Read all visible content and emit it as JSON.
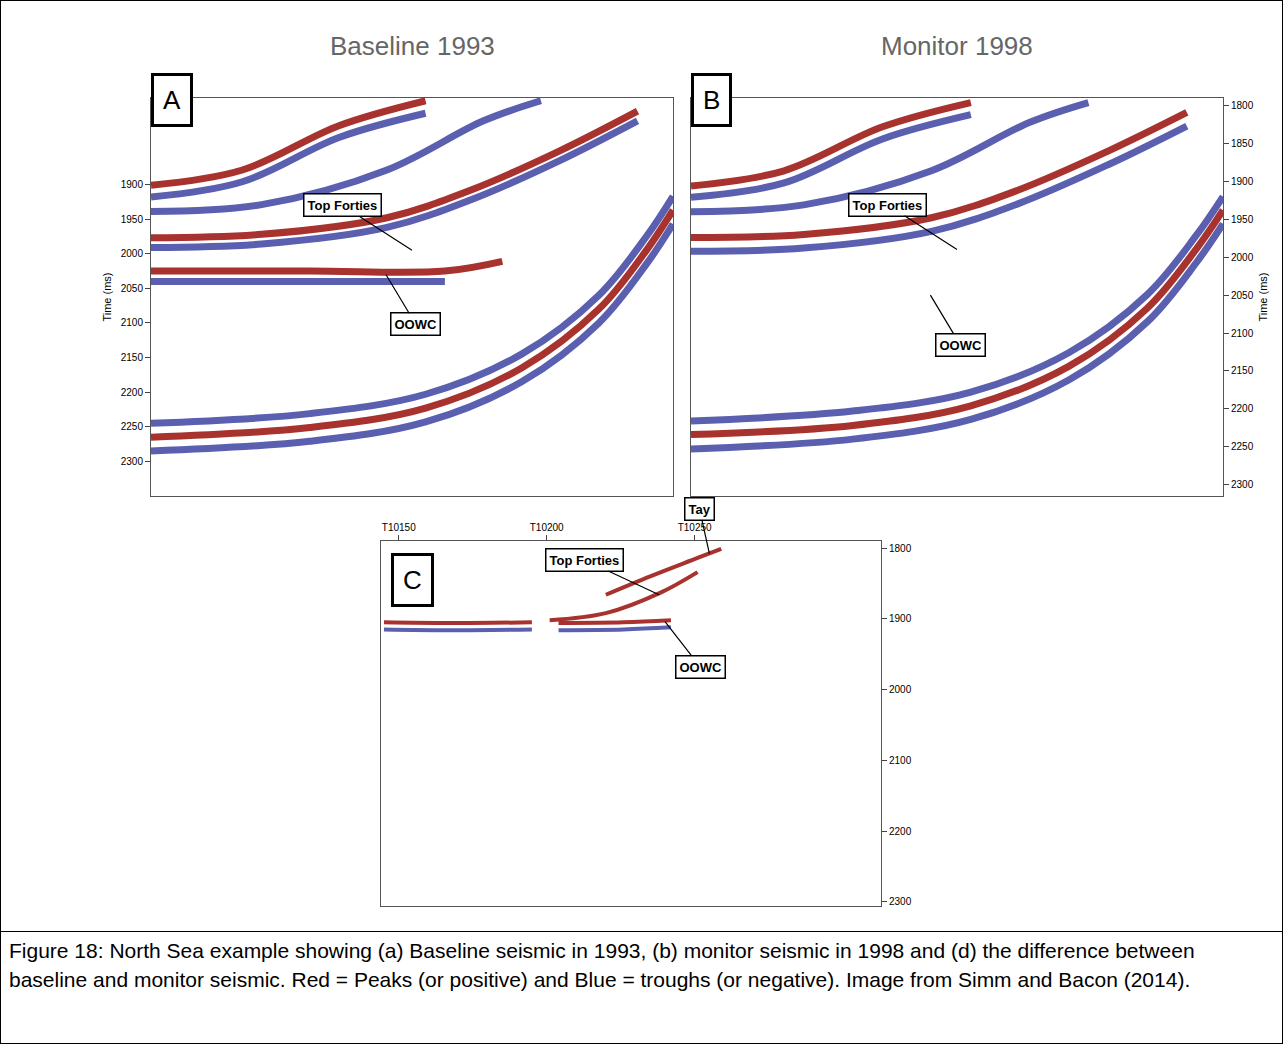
{
  "chart_data": [
    {
      "type": "line",
      "title": "Baseline 1993",
      "label": "A",
      "y_label": "Time (ms)",
      "xlim": [
        0,
        100
      ],
      "ylim": [
        2350,
        1775
      ],
      "yticks": [
        1900,
        1950,
        2000,
        2050,
        2100,
        2150,
        2200,
        2250,
        2300
      ],
      "tick_labels": "y",
      "grid": false,
      "series": [
        {
          "color": "#a8322d",
          "x": [
            0,
            17.5,
            36,
            52.6
          ],
          "values": [
            1901,
            1879,
            1815,
            1779
          ]
        },
        {
          "color": "#5a5fb0",
          "x": [
            0,
            17.5,
            36,
            52.6
          ],
          "values": [
            1918,
            1896,
            1832,
            1797
          ]
        },
        {
          "color": "#5a5fb0",
          "x": [
            0,
            21.2,
            45.2,
            63.7,
            74.7
          ],
          "values": [
            1939,
            1929,
            1879,
            1808,
            1779
          ]
        },
        {
          "color": "#a8322d",
          "x": [
            0,
            21.2,
            45.2,
            61.3,
            78.4,
            93.2
          ],
          "values": [
            1977,
            1972,
            1948,
            1908,
            1851,
            1794
          ]
        },
        {
          "color": "#5a5fb0",
          "x": [
            0,
            21.2,
            45.2,
            61.3,
            78.4,
            93.2
          ],
          "values": [
            1991,
            1986,
            1962,
            1922,
            1865,
            1808
          ]
        },
        {
          "color": "#a8322d",
          "x": [
            0,
            30.4,
            56.3,
            67.3
          ],
          "values": [
            2025,
            2025,
            2025,
            2011
          ]
        },
        {
          "color": "#5a5fb0",
          "x": [
            0,
            30.4,
            56.3
          ],
          "values": [
            2040,
            2040,
            2040
          ]
        },
        {
          "color": "#5a5fb0",
          "x": [
            0,
            30.4,
            52.6,
            71,
            85.8,
            95,
            100
          ],
          "values": [
            2245,
            2231,
            2203,
            2145,
            2060,
            1974,
            1917
          ]
        },
        {
          "color": "#a8322d",
          "x": [
            0,
            30.4,
            52.6,
            71,
            85.8,
            95,
            100
          ],
          "values": [
            2265,
            2251,
            2223,
            2165,
            2080,
            1994,
            1937
          ]
        },
        {
          "color": "#5a5fb0",
          "x": [
            0,
            30.4,
            52.6,
            71,
            85.8,
            95,
            100
          ],
          "values": [
            2285,
            2271,
            2243,
            2185,
            2100,
            2014,
            1957
          ]
        }
      ],
      "annotations": [
        {
          "text": "Top Forties",
          "x": 50,
          "y": 1995
        },
        {
          "text": "OOWC",
          "x": 45,
          "y": 2030
        }
      ]
    },
    {
      "type": "line",
      "title": "Monitor 1998",
      "label": "B",
      "y_label": "Time (ms)",
      "xlim": [
        0,
        100
      ],
      "ylim": [
        2315,
        1790
      ],
      "yticks": [
        1800,
        1850,
        1900,
        1950,
        2000,
        2050,
        2100,
        2150,
        2200,
        2250,
        2300
      ],
      "tick_labels": "y",
      "grid": false,
      "series": [
        {
          "color": "#a8322d",
          "x": [
            0,
            17.5,
            36,
            52.6
          ],
          "values": [
            1906,
            1886,
            1828,
            1796
          ]
        },
        {
          "color": "#5a5fb0",
          "x": [
            0,
            17.5,
            36,
            52.6
          ],
          "values": [
            1921,
            1902,
            1844,
            1812
          ]
        },
        {
          "color": "#5a5fb0",
          "x": [
            0,
            21.2,
            45.2,
            63.7,
            74.7
          ],
          "values": [
            1940,
            1931,
            1886,
            1822,
            1796
          ]
        },
        {
          "color": "#a8322d",
          "x": [
            0,
            21.2,
            45.2,
            61.3,
            78.4,
            93.2
          ],
          "values": [
            1974,
            1970,
            1948,
            1912,
            1860,
            1809
          ]
        },
        {
          "color": "#5a5fb0",
          "x": [
            0,
            21.2,
            45.2,
            61.3,
            78.4,
            93.2
          ],
          "values": [
            1992,
            1988,
            1966,
            1930,
            1878,
            1827
          ]
        },
        {
          "color": "#5a5fb0",
          "x": [
            0,
            30.4,
            52.6,
            71,
            85.8,
            95,
            100
          ],
          "values": [
            2216,
            2203,
            2178,
            2126,
            2049,
            1971,
            1920
          ]
        },
        {
          "color": "#a8322d",
          "x": [
            0,
            30.4,
            52.6,
            71,
            85.8,
            95,
            100
          ],
          "values": [
            2234,
            2222,
            2196,
            2144,
            2067,
            1989,
            1938
          ]
        },
        {
          "color": "#5a5fb0",
          "x": [
            0,
            30.4,
            52.6,
            71,
            85.8,
            95,
            100
          ],
          "values": [
            2253,
            2240,
            2214,
            2162,
            2085,
            2007,
            1956
          ]
        }
      ],
      "annotations": [
        {
          "text": "Top Forties",
          "x": 50,
          "y": 1990
        },
        {
          "text": "OOWC",
          "x": 45,
          "y": 2050
        }
      ]
    },
    {
      "type": "line",
      "label": "C",
      "xlim": [
        10144,
        10313
      ],
      "ylim": [
        2306,
        1790
      ],
      "xticks": [
        {
          "value": 10150,
          "label": "T10150"
        },
        {
          "value": 10200,
          "label": "T10200"
        },
        {
          "value": 10250,
          "label": "T10250"
        }
      ],
      "yticks": [
        1800,
        1900,
        2000,
        2100,
        2200,
        2300
      ],
      "tick_labels": true,
      "grid": false,
      "series": [
        {
          "color": "#a8322d",
          "x": [
            10145,
            10167,
            10195
          ],
          "values": [
            1905,
            1906,
            1905
          ]
        },
        {
          "color": "#5a5fb0",
          "x": [
            10145,
            10167,
            10195
          ],
          "values": [
            1915,
            1916,
            1915
          ]
        },
        {
          "color": "#a8322d",
          "x": [
            10204,
            10226,
            10242
          ],
          "values": [
            1906,
            1905,
            1902
          ]
        },
        {
          "color": "#5a5fb0",
          "x": [
            10204,
            10226,
            10242
          ],
          "values": [
            1916,
            1915,
            1912
          ]
        },
        {
          "color": "#a8322d",
          "x": [
            10201,
            10220,
            10238.5,
            10251
          ],
          "values": [
            1902,
            1892,
            1863,
            1834
          ]
        },
        {
          "color": "#a8322d",
          "x": [
            10220,
            10235,
            10251,
            10259
          ],
          "values": [
            1866,
            1840,
            1814,
            1801
          ]
        }
      ],
      "annotations": [
        {
          "text": "Tay",
          "x": 10255,
          "y": 1808
        },
        {
          "text": "Top Forties",
          "x": 10238,
          "y": 1866
        },
        {
          "text": "OOWC",
          "x": 10240,
          "y": 1904
        }
      ]
    }
  ],
  "caption": "Figure 18: North Sea example showing (a) Baseline seismic in 1993, (b) monitor seismic in 1998 and (d) the difference between baseline and monitor seismic. Red = Peaks (or positive) and Blue = troughs (or negative). Image from Simm and Bacon (2014)."
}
